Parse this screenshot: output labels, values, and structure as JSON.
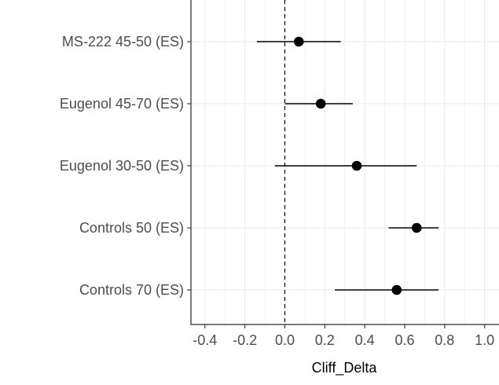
{
  "chart_data": {
    "type": "forest",
    "title": "",
    "xlabel": "Cliff_Delta",
    "ylabel": "",
    "xlim": [
      -0.47,
      1.08
    ],
    "x_ticks": [
      -0.4,
      -0.2,
      0.0,
      0.2,
      0.4,
      0.6,
      0.8,
      1.0
    ],
    "x_tick_labels": [
      "-0.4",
      "-0.2",
      "0.0",
      "0.2",
      "0.4",
      "0.6",
      "0.8",
      "1.0"
    ],
    "reference_line": 0,
    "grid": true,
    "legend": "none",
    "categories": [
      "MS-222 45-50 (ES)",
      "Eugenol 45-70 (ES)",
      "Eugenol 30-50 (ES)",
      "Controls 50 (ES)",
      "Controls 70 (ES)"
    ],
    "estimates": [
      0.07,
      0.18,
      0.36,
      0.66,
      0.56
    ],
    "ci_lower": [
      -0.14,
      0.0,
      -0.05,
      0.52,
      0.25
    ],
    "ci_upper": [
      0.28,
      0.34,
      0.66,
      0.77,
      0.77
    ],
    "colors": {
      "point": "#000000",
      "line": "#000000",
      "grid": "#ebebeb",
      "axis": "#333333",
      "tick_text": "#4d4d4d",
      "title_text": "#000000"
    }
  }
}
